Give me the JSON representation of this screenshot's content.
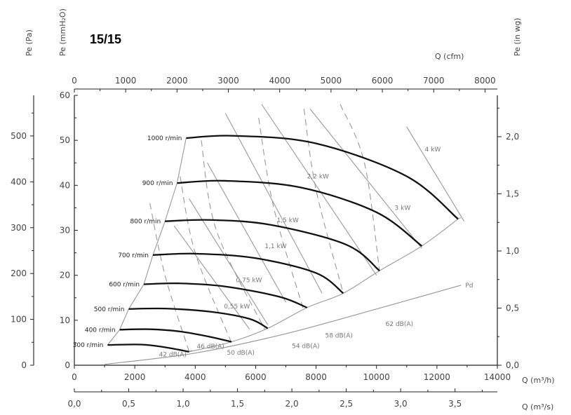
{
  "model_label": "15/15",
  "chart_data": {
    "type": "line",
    "axes": {
      "x_bottom": {
        "label": "Q (m³/h)",
        "range": [
          0,
          14000
        ],
        "ticks": [
          0,
          2000,
          4000,
          6000,
          8000,
          10000,
          12000,
          14000
        ]
      },
      "x_bottom2": {
        "label": "Q (m³/s)",
        "range": [
          0,
          3.889
        ],
        "ticks": [
          0.0,
          0.5,
          1.0,
          1.5,
          2.0,
          2.5,
          3.0,
          3.5
        ],
        "tick_labels": [
          "0,0",
          "0,5",
          "1,0",
          "1,5",
          "2,0",
          "2,5",
          "3,0",
          "3,5"
        ]
      },
      "x_top": {
        "label": "Q (cfm)",
        "range": [
          0,
          8240
        ],
        "ticks": [
          0,
          1000,
          2000,
          3000,
          4000,
          5000,
          6000,
          7000,
          8000
        ],
        "tick_labels": [
          "0",
          "1000",
          "2000",
          "3000",
          "4000",
          "5000",
          "6000",
          "7000",
          "8000"
        ]
      },
      "y_left_pa": {
        "label": "Pe (Pa)",
        "range": [
          0,
          588.6
        ],
        "ticks": [
          0,
          100,
          200,
          300,
          400,
          500
        ]
      },
      "y_left_mm": {
        "label": "Pe (mmH₂O)",
        "range": [
          0,
          60
        ],
        "ticks": [
          0,
          10,
          20,
          30,
          40,
          50,
          60
        ]
      },
      "y_right_inwg": {
        "label": "Pe (in wg)",
        "range": [
          0,
          2.362
        ],
        "ticks": [
          0.0,
          0.5,
          1.0,
          1.5,
          2.0
        ],
        "tick_labels": [
          "0,0",
          "0,5",
          "1,0",
          "1,5",
          "2,0"
        ]
      }
    },
    "speed_curves": [
      {
        "name": "300 r/min",
        "points": [
          [
            1100,
            4.5
          ],
          [
            2200,
            4.6
          ],
          [
            3000,
            4.0
          ],
          [
            3800,
            3.0
          ]
        ]
      },
      {
        "name": "400 r/min",
        "points": [
          [
            1500,
            7.9
          ],
          [
            2500,
            8.0
          ],
          [
            3500,
            7.5
          ],
          [
            4500,
            6.3
          ],
          [
            5200,
            5.2
          ]
        ]
      },
      {
        "name": "500 r/min",
        "points": [
          [
            1800,
            12.5
          ],
          [
            3000,
            12.6
          ],
          [
            4500,
            11.9
          ],
          [
            5800,
            10.3
          ],
          [
            6400,
            8.2
          ]
        ]
      },
      {
        "name": "600 r/min",
        "points": [
          [
            2300,
            18.0
          ],
          [
            3500,
            18.2
          ],
          [
            5000,
            17.5
          ],
          [
            6800,
            15.2
          ],
          [
            7700,
            12.8
          ]
        ]
      },
      {
        "name": "700 r/min",
        "points": [
          [
            2600,
            24.5
          ],
          [
            4000,
            24.8
          ],
          [
            6000,
            23.8
          ],
          [
            8000,
            20.5
          ],
          [
            8900,
            16.0
          ]
        ]
      },
      {
        "name": "800 r/min",
        "points": [
          [
            3000,
            32.0
          ],
          [
            4500,
            32.3
          ],
          [
            6500,
            31.2
          ],
          [
            9000,
            26.8
          ],
          [
            10100,
            21.0
          ]
        ]
      },
      {
        "name": "900 r/min",
        "points": [
          [
            3400,
            40.5
          ],
          [
            5000,
            41.0
          ],
          [
            7500,
            39.5
          ],
          [
            10000,
            34.0
          ],
          [
            11500,
            26.5
          ]
        ]
      },
      {
        "name": "1000 r/min",
        "points": [
          [
            3700,
            50.5
          ],
          [
            5300,
            51.0
          ],
          [
            8000,
            49.3
          ],
          [
            11000,
            42.0
          ],
          [
            12700,
            32.5
          ]
        ]
      }
    ],
    "power_lines": [
      {
        "name": "0,55 kW",
        "points": [
          [
            3300,
            31
          ],
          [
            5800,
            8
          ]
        ]
      },
      {
        "name": "0,75 kW",
        "points": [
          [
            3800,
            37
          ],
          [
            6400,
            9
          ]
        ]
      },
      {
        "name": "1,1 kW",
        "points": [
          [
            4400,
            45
          ],
          [
            7000,
            14
          ]
        ]
      },
      {
        "name": "1,5 kW",
        "points": [
          [
            5000,
            56
          ],
          [
            8200,
            16
          ]
        ]
      },
      {
        "name": "2,2 kW",
        "points": [
          [
            6200,
            58
          ],
          [
            10000,
            20
          ]
        ]
      },
      {
        "name": "3 kW",
        "points": [
          [
            7800,
            57
          ],
          [
            11500,
            26
          ]
        ]
      },
      {
        "name": "4 kW",
        "points": [
          [
            11000,
            53
          ],
          [
            12900,
            32
          ]
        ]
      }
    ],
    "sound_lines": [
      {
        "name": "42 dB(A)",
        "points": [
          [
            2500,
            36
          ],
          [
            3000,
            20
          ],
          [
            3800,
            3
          ]
        ]
      },
      {
        "name": "46 dB(A)",
        "points": [
          [
            3500,
            42
          ],
          [
            4000,
            25
          ],
          [
            5200,
            5
          ]
        ]
      },
      {
        "name": "50 dB(A)",
        "points": [
          [
            4200,
            50
          ],
          [
            4700,
            30
          ],
          [
            6300,
            8
          ]
        ]
      },
      {
        "name": "54 dB(A)",
        "points": [
          [
            6100,
            55
          ],
          [
            6600,
            35
          ],
          [
            7600,
            12
          ]
        ]
      },
      {
        "name": "58 dB(A)",
        "points": [
          [
            7600,
            57
          ],
          [
            8000,
            39
          ],
          [
            8900,
            16
          ]
        ]
      },
      {
        "name": "62 dB(A)",
        "points": [
          [
            8800,
            58
          ],
          [
            9600,
            45
          ],
          [
            10100,
            21
          ]
        ]
      }
    ],
    "pd_curve": {
      "name": "Pd",
      "points": [
        [
          1000,
          0.2
        ],
        [
          4000,
          2.7
        ],
        [
          7000,
          7.0
        ],
        [
          10000,
          12.5
        ],
        [
          12800,
          17.8
        ]
      ]
    }
  }
}
